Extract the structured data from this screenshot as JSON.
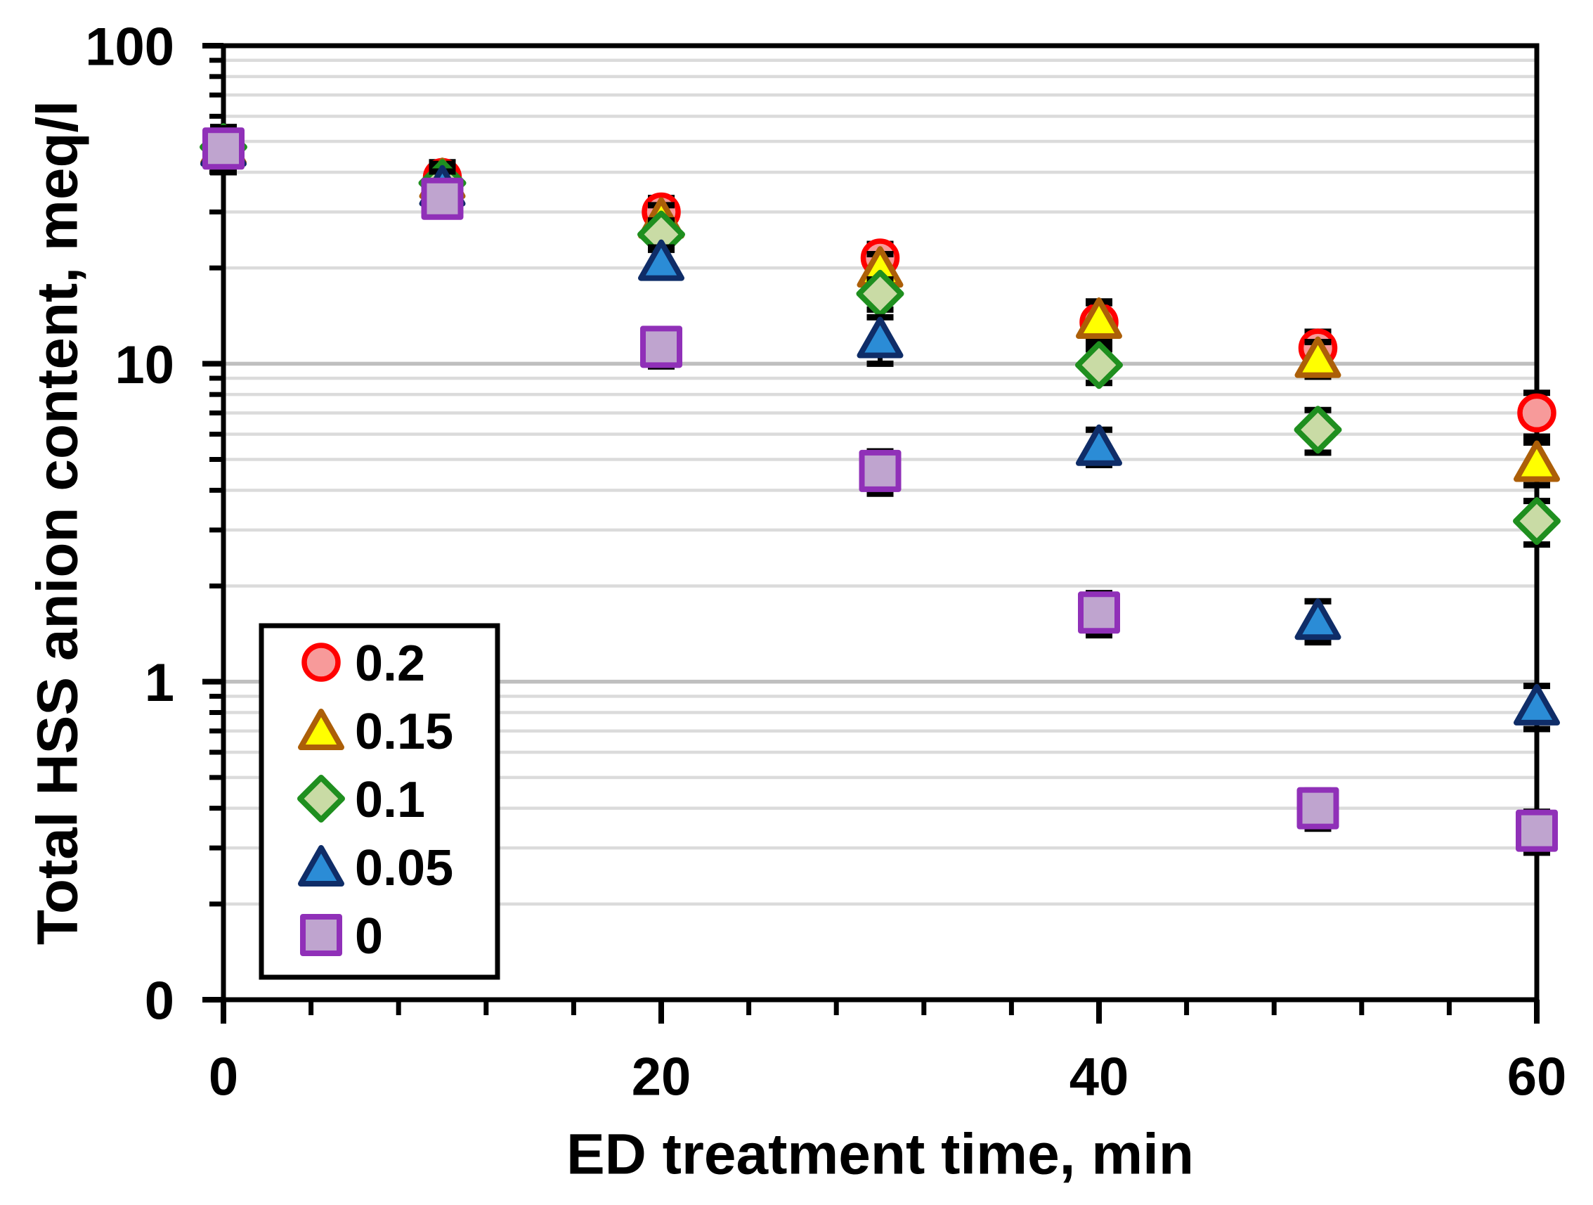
{
  "figure": {
    "background": "#FFFFFF"
  },
  "chart_data": {
    "type": "scatter",
    "title": "",
    "xlabel": "ED treatment time, min",
    "ylabel": "Total HSS anion content, meq/l",
    "x_axis": {
      "min": 0,
      "max": 60,
      "major_tick_values": [
        0,
        20,
        40,
        60
      ],
      "major_tick_labels": [
        "0",
        "20",
        "40",
        "60"
      ],
      "minor_unit": 4
    },
    "y_axis": {
      "scale": "log",
      "min": 0.1,
      "max": 100,
      "major_tick_values": [
        100,
        10,
        1,
        0.1
      ],
      "major_tick_labels": [
        "100",
        "10",
        "1",
        "0"
      ],
      "minor_mantissas": [
        2,
        3,
        4,
        5,
        6,
        7,
        8,
        9
      ],
      "major_gridline_values": [
        10,
        1
      ]
    },
    "grid": {
      "minor_color": "#DBDBDB",
      "major_color": "#BFBFBF",
      "axis_color": "#000000",
      "error_bar_color": "#000000"
    },
    "x": [
      0,
      10,
      20,
      30,
      40,
      50,
      60
    ],
    "series": [
      {
        "name": "0.2",
        "marker": "circle",
        "fill": "#F79A9A",
        "stroke": "#FF0000",
        "values": [
          49,
          38.5,
          30,
          21.5,
          13.5,
          11.2,
          7.0
        ],
        "errors": [
          6.5,
          4.5,
          3.2,
          2.3,
          2.0,
          1.4,
          1.1
        ]
      },
      {
        "name": "0.15",
        "marker": "triangle",
        "fill": "#FFFF00",
        "stroke": "#AC5F08",
        "values": [
          48.5,
          38,
          28.5,
          20,
          13.8,
          10.4,
          4.9
        ],
        "errors": [
          6,
          4.5,
          3.0,
          2.1,
          1.9,
          1.3,
          0.75
        ]
      },
      {
        "name": "0.1",
        "marker": "diamond",
        "fill": "#C9DBA5",
        "stroke": "#1F8F1F",
        "values": [
          48,
          37,
          25.5,
          16.6,
          9.9,
          6.2,
          3.2
        ],
        "errors": [
          6,
          4.3,
          2.7,
          1.8,
          1.2,
          0.95,
          0.5
        ]
      },
      {
        "name": "0.05",
        "marker": "triangle",
        "fill": "#2B8CD6",
        "stroke": "#0F2D68",
        "values": [
          48,
          36,
          21,
          12,
          5.5,
          1.56,
          0.84
        ],
        "errors": [
          6,
          4.2,
          2.2,
          2.0,
          0.7,
          0.23,
          0.13
        ]
      },
      {
        "name": "0",
        "marker": "square",
        "fill": "#BFA4CF",
        "stroke": "#9030B8",
        "values": [
          47.5,
          33,
          11.3,
          4.6,
          1.65,
          0.4,
          0.34
        ],
        "errors": [
          7.5,
          3.6,
          1.5,
          0.7,
          0.25,
          0.055,
          0.05
        ]
      }
    ],
    "legend": {
      "position": "lower-left-inside",
      "entries": [
        "0.2",
        "0.15",
        "0.1",
        "0.05",
        "0"
      ]
    }
  }
}
